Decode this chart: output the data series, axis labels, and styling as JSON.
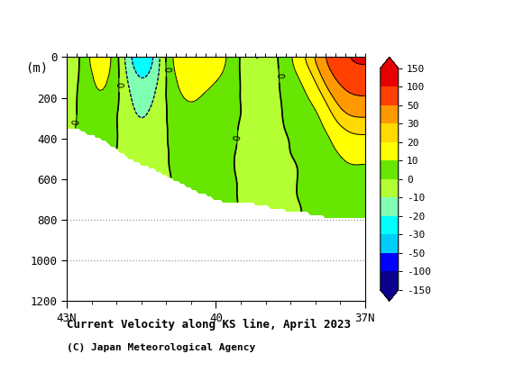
{
  "title": "Current Velocity along KS line, April 2023",
  "subtitle": "(C) Japan Meteorological Agency",
  "ylabel": "(m)",
  "depth_min": 0,
  "depth_max": 1200,
  "lat_min": 37,
  "lat_max": 43,
  "colorbar_levels": [
    -150,
    -100,
    -50,
    -30,
    -20,
    -10,
    0,
    10,
    20,
    30,
    50,
    100,
    150
  ],
  "bg_color": "#ffffff",
  "dotted_grid_depths": [
    800,
    1000
  ],
  "seed": 42
}
